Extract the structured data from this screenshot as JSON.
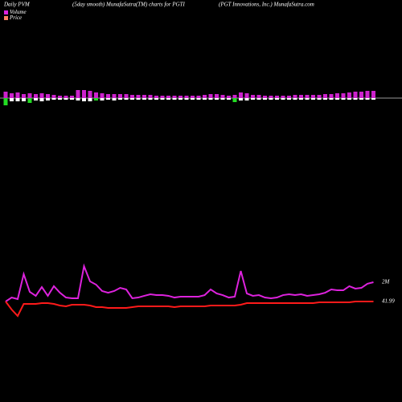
{
  "header": {
    "left": "Daily PVM",
    "center": "(5day smooth) MunafaSutra(TM) charts for PGTI",
    "right": "(PGT Innovations, Inc.) MunafaSutra.com"
  },
  "chart_data": [
    {
      "type": "bar",
      "ylim": [
        -12,
        12
      ],
      "up": {
        "color": "#cc22cc",
        "values": [
          8,
          6,
          7,
          5,
          6,
          5,
          6,
          5,
          4,
          3,
          3,
          3,
          10,
          10,
          9,
          7,
          6,
          5,
          5,
          5,
          5,
          4,
          4,
          4,
          4,
          3,
          3,
          3,
          3,
          3,
          3,
          3,
          3,
          4,
          5,
          5,
          4,
          3,
          4,
          7,
          6,
          4,
          4,
          3,
          3,
          3,
          3,
          3,
          4,
          4,
          4,
          4,
          4,
          5,
          5,
          6,
          6,
          7,
          8,
          8,
          9,
          9
        ]
      },
      "down": {
        "color": "#ffffff",
        "values": [
          null,
          -4,
          -4,
          -4,
          null,
          -3,
          -4,
          -3,
          -2,
          -2,
          -2,
          -2,
          -3,
          -4,
          -4,
          null,
          -3,
          -2,
          -3,
          -2,
          -2,
          -2,
          -2,
          -2,
          -2,
          -2,
          -2,
          -2,
          -2,
          -2,
          -2,
          -2,
          -2,
          -2,
          -2,
          -2,
          -2,
          -2,
          null,
          -3,
          -3,
          -2,
          -2,
          -2,
          -2,
          -2,
          -2,
          -2,
          -2,
          -2,
          -2,
          -2,
          -2,
          -2,
          -2,
          -2,
          -2,
          -2,
          -2,
          -2,
          -2,
          -2
        ]
      },
      "down_alt": {
        "color": "#22dd22",
        "values": [
          -9,
          null,
          null,
          null,
          -6,
          null,
          null,
          null,
          null,
          null,
          null,
          null,
          null,
          null,
          null,
          -3,
          null,
          null,
          null,
          null,
          null,
          null,
          null,
          null,
          null,
          null,
          null,
          null,
          null,
          null,
          null,
          null,
          null,
          null,
          null,
          null,
          null,
          null,
          -5,
          null,
          null,
          null,
          null,
          null,
          null,
          null,
          null,
          null,
          null,
          null,
          null,
          null,
          null,
          null,
          null,
          null,
          null,
          null,
          null,
          null,
          null,
          null
        ]
      }
    },
    {
      "type": "line",
      "ylim": [
        0,
        4000000
      ],
      "y2lim": [
        30,
        45
      ],
      "series": [
        {
          "name": "Volume",
          "color": "#dd22dd",
          "end_label": "2M",
          "values": [
            400000,
            730000,
            600000,
            2670000,
            1200000,
            870000,
            1600000,
            870000,
            1670000,
            1130000,
            730000,
            670000,
            670000,
            3330000,
            2070000,
            1800000,
            1270000,
            1130000,
            1270000,
            1530000,
            1400000,
            670000,
            730000,
            870000,
            1000000,
            930000,
            930000,
            870000,
            730000,
            800000,
            800000,
            800000,
            800000,
            930000,
            1400000,
            1070000,
            930000,
            730000,
            800000,
            2930000,
            1070000,
            870000,
            930000,
            730000,
            670000,
            730000,
            930000,
            1000000,
            930000,
            1000000,
            870000,
            930000,
            1000000,
            1130000,
            1400000,
            1330000,
            1330000,
            1670000,
            1470000,
            1530000,
            1870000,
            2000000
          ]
        },
        {
          "name": "Price",
          "color": "#ff1a1a",
          "legend_color": "#ff8060",
          "axis": "y2",
          "end_label": "41.99",
          "values": [
            42,
            37,
            33,
            40.5,
            40.5,
            40.5,
            41,
            41,
            40.5,
            39.5,
            39,
            40,
            40,
            40,
            39.5,
            38.5,
            38.5,
            38,
            38,
            38,
            38,
            38.5,
            39,
            39,
            39,
            39,
            39,
            39,
            38.5,
            39,
            39,
            39,
            39,
            39,
            39.5,
            39.5,
            39.5,
            39.5,
            39.5,
            40,
            41,
            41,
            41,
            41,
            41,
            41,
            41,
            41,
            41,
            41,
            41,
            41,
            41.5,
            41.5,
            41.5,
            41.5,
            41.5,
            41.5,
            42,
            42,
            42,
            41.99
          ]
        }
      ]
    }
  ]
}
